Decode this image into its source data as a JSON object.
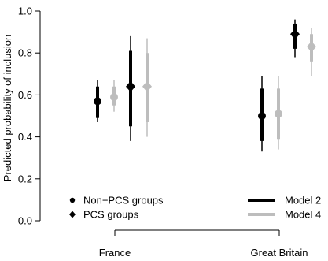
{
  "chart_data": {
    "type": "dot-interval",
    "ylabel": "Predicted probability of inclusion",
    "ylim": [
      0.0,
      1.0
    ],
    "yticks": [
      "0.0",
      "0.2",
      "0.4",
      "0.6",
      "0.8",
      "1.0"
    ],
    "categories": [
      "France",
      "Great Britain"
    ],
    "marker_legend": [
      {
        "label": "Non−PCS groups",
        "marker": "circle"
      },
      {
        "label": "PCS groups",
        "marker": "diamond"
      }
    ],
    "series_legend": [
      {
        "label": "Model 2",
        "color": "#000000"
      },
      {
        "label": "Model 4",
        "color": "#bdbdbd"
      }
    ],
    "estimates": [
      {
        "country": "France",
        "group": "Non-PCS groups",
        "model": "Model 2",
        "marker": "circle",
        "color": "#000000",
        "value": 0.57,
        "inner": [
          0.49,
          0.64
        ],
        "outer": [
          0.47,
          0.67
        ]
      },
      {
        "country": "France",
        "group": "Non-PCS groups",
        "model": "Model 4",
        "marker": "circle",
        "color": "#bdbdbd",
        "value": 0.59,
        "inner": [
          0.55,
          0.64
        ],
        "outer": [
          0.52,
          0.67
        ]
      },
      {
        "country": "France",
        "group": "PCS groups",
        "model": "Model 2",
        "marker": "diamond",
        "color": "#000000",
        "value": 0.64,
        "inner": [
          0.45,
          0.81
        ],
        "outer": [
          0.38,
          0.88
        ]
      },
      {
        "country": "France",
        "group": "PCS groups",
        "model": "Model 4",
        "marker": "diamond",
        "color": "#bdbdbd",
        "value": 0.64,
        "inner": [
          0.47,
          0.8
        ],
        "outer": [
          0.4,
          0.87
        ]
      },
      {
        "country": "Great Britain",
        "group": "Non-PCS groups",
        "model": "Model 2",
        "marker": "circle",
        "color": "#000000",
        "value": 0.5,
        "inner": [
          0.38,
          0.63
        ],
        "outer": [
          0.33,
          0.69
        ]
      },
      {
        "country": "Great Britain",
        "group": "Non-PCS groups",
        "model": "Model 4",
        "marker": "circle",
        "color": "#bdbdbd",
        "value": 0.51,
        "inner": [
          0.39,
          0.63
        ],
        "outer": [
          0.34,
          0.69
        ]
      },
      {
        "country": "Great Britain",
        "group": "PCS groups",
        "model": "Model 2",
        "marker": "diamond",
        "color": "#000000",
        "value": 0.89,
        "inner": [
          0.82,
          0.94
        ],
        "outer": [
          0.78,
          0.96
        ]
      },
      {
        "country": "Great Britain",
        "group": "PCS groups",
        "model": "Model 4",
        "marker": "diamond",
        "color": "#bdbdbd",
        "value": 0.83,
        "inner": [
          0.76,
          0.89
        ],
        "outer": [
          0.69,
          0.92
        ]
      }
    ]
  }
}
